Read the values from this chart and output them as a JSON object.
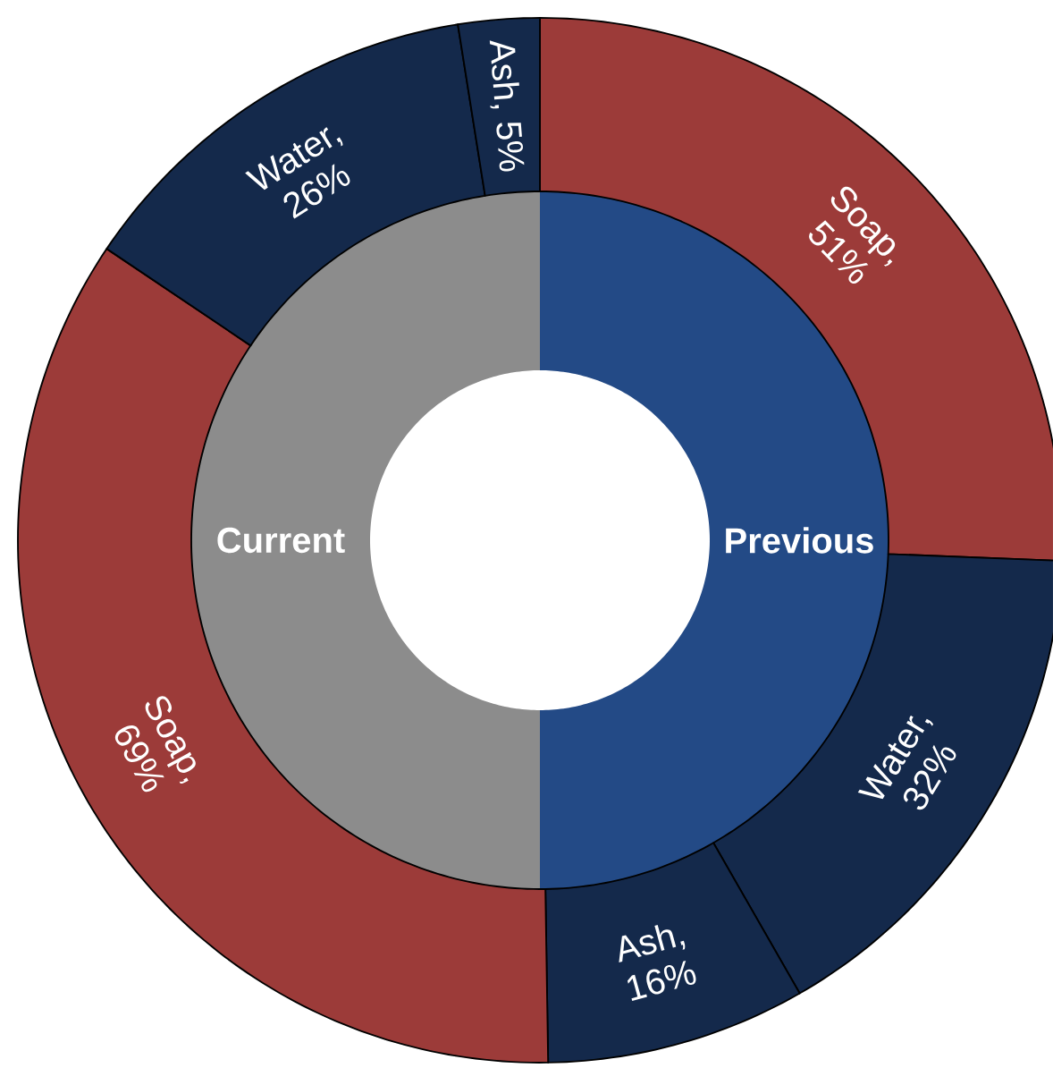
{
  "chart_data": [
    {
      "type": "donut",
      "categories": [
        "Previous",
        "Current"
      ],
      "values": [
        50,
        50
      ],
      "colors": [
        "#234a86",
        "#8c8c8c"
      ]
    },
    {
      "type": "donut",
      "categories": [
        null,
        null,
        null,
        null,
        null,
        null
      ],
      "values": [
        51,
        32,
        16,
        69,
        26,
        5
      ],
      "value_labels": [
        "Soap, 51%",
        "Water, 32%",
        "Ash, 16%",
        "Soap, 69%",
        "Water, 26%",
        "Ash, 5%"
      ],
      "colors": [
        "#9c3b39",
        "#14294b",
        "#14294b",
        "#9c3b39",
        "#14294b",
        "#14294b"
      ]
    }
  ]
}
